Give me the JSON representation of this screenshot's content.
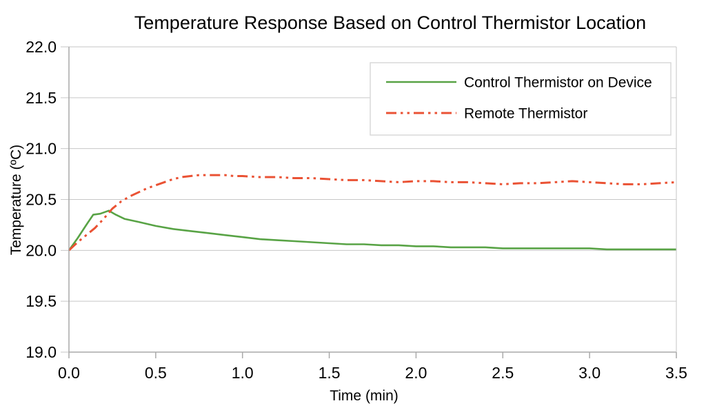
{
  "chart_data": {
    "type": "line",
    "title": "Temperature Response Based on Control Thermistor Location",
    "xlabel": "Time (min)",
    "ylabel": "Temperature (ºC)",
    "xlim": [
      0.0,
      3.5
    ],
    "ylim": [
      19.0,
      22.0
    ],
    "xticks": [
      0.0,
      0.5,
      1.0,
      1.5,
      2.0,
      2.5,
      3.0,
      3.5
    ],
    "yticks": [
      19.0,
      19.5,
      20.0,
      20.5,
      21.0,
      21.5,
      22.0
    ],
    "grid": "horizontal-only",
    "legend": {
      "position": "top-right",
      "border": true
    },
    "series": [
      {
        "name": "Control Thermistor on Device",
        "color": "#58a345",
        "style": "solid",
        "stroke_width": 2.6,
        "points": [
          [
            0.0,
            20.0
          ],
          [
            0.05,
            20.12
          ],
          [
            0.1,
            20.25
          ],
          [
            0.14,
            20.35
          ],
          [
            0.18,
            20.36
          ],
          [
            0.23,
            20.39
          ],
          [
            0.27,
            20.35
          ],
          [
            0.32,
            20.31
          ],
          [
            0.4,
            20.28
          ],
          [
            0.5,
            20.24
          ],
          [
            0.6,
            20.21
          ],
          [
            0.7,
            20.19
          ],
          [
            0.8,
            20.17
          ],
          [
            0.9,
            20.15
          ],
          [
            1.0,
            20.13
          ],
          [
            1.1,
            20.11
          ],
          [
            1.2,
            20.1
          ],
          [
            1.3,
            20.09
          ],
          [
            1.4,
            20.08
          ],
          [
            1.5,
            20.07
          ],
          [
            1.6,
            20.06
          ],
          [
            1.7,
            20.06
          ],
          [
            1.8,
            20.05
          ],
          [
            1.9,
            20.05
          ],
          [
            2.0,
            20.04
          ],
          [
            2.1,
            20.04
          ],
          [
            2.2,
            20.03
          ],
          [
            2.3,
            20.03
          ],
          [
            2.4,
            20.03
          ],
          [
            2.5,
            20.02
          ],
          [
            2.6,
            20.02
          ],
          [
            2.7,
            20.02
          ],
          [
            2.8,
            20.02
          ],
          [
            2.9,
            20.02
          ],
          [
            3.0,
            20.02
          ],
          [
            3.1,
            20.01
          ],
          [
            3.2,
            20.01
          ],
          [
            3.3,
            20.01
          ],
          [
            3.4,
            20.01
          ],
          [
            3.5,
            20.01
          ]
        ]
      },
      {
        "name": "Remote Thermistor",
        "color": "#ea5234",
        "style": "dash-dot-dot",
        "stroke_width": 3,
        "points": [
          [
            0.0,
            20.0
          ],
          [
            0.05,
            20.08
          ],
          [
            0.1,
            20.15
          ],
          [
            0.15,
            20.22
          ],
          [
            0.2,
            20.31
          ],
          [
            0.25,
            20.41
          ],
          [
            0.3,
            20.48
          ],
          [
            0.35,
            20.53
          ],
          [
            0.4,
            20.57
          ],
          [
            0.45,
            20.61
          ],
          [
            0.5,
            20.64
          ],
          [
            0.55,
            20.67
          ],
          [
            0.6,
            20.7
          ],
          [
            0.65,
            20.72
          ],
          [
            0.7,
            20.73
          ],
          [
            0.75,
            20.74
          ],
          [
            0.8,
            20.74
          ],
          [
            0.85,
            20.74
          ],
          [
            0.9,
            20.74
          ],
          [
            0.95,
            20.73
          ],
          [
            1.0,
            20.73
          ],
          [
            1.1,
            20.72
          ],
          [
            1.2,
            20.72
          ],
          [
            1.3,
            20.71
          ],
          [
            1.4,
            20.71
          ],
          [
            1.5,
            20.7
          ],
          [
            1.6,
            20.69
          ],
          [
            1.7,
            20.69
          ],
          [
            1.8,
            20.68
          ],
          [
            1.9,
            20.67
          ],
          [
            2.0,
            20.68
          ],
          [
            2.1,
            20.68
          ],
          [
            2.2,
            20.67
          ],
          [
            2.3,
            20.67
          ],
          [
            2.4,
            20.66
          ],
          [
            2.5,
            20.65
          ],
          [
            2.6,
            20.66
          ],
          [
            2.7,
            20.66
          ],
          [
            2.8,
            20.67
          ],
          [
            2.9,
            20.68
          ],
          [
            3.0,
            20.67
          ],
          [
            3.1,
            20.66
          ],
          [
            3.2,
            20.65
          ],
          [
            3.3,
            20.65
          ],
          [
            3.4,
            20.66
          ],
          [
            3.5,
            20.67
          ]
        ]
      }
    ],
    "colors": {
      "background": "#ffffff",
      "gridline": "#c6c6c6",
      "axis": "#a9a9a9",
      "text": "#000000",
      "legend_border": "#d9d9d9"
    },
    "tick_label_format": "one_decimal"
  }
}
